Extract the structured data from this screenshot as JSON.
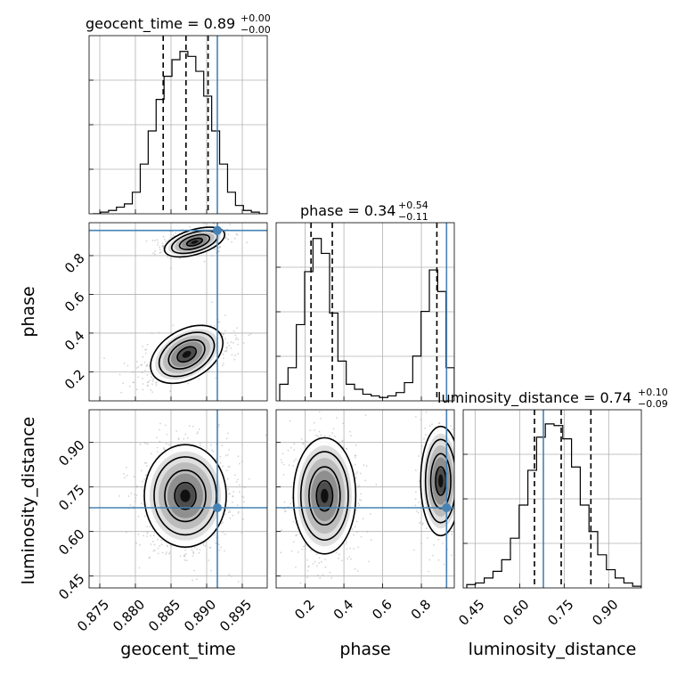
{
  "chart_data": {
    "type": "corner",
    "parameters": [
      "geocent_time",
      "phase",
      "luminosity_distance"
    ],
    "truths": {
      "geocent_time": 0.8915,
      "phase": 0.93,
      "luminosity_distance": 0.68
    },
    "truth_color": "#4682b4",
    "titles": [
      {
        "param": "geocent_time",
        "text": "geocent_time = 0.89",
        "plus": "+0.00",
        "minus": "−0.00"
      },
      {
        "param": "phase",
        "text": "phase = 0.34",
        "plus": "+0.54",
        "minus": "−0.11"
      },
      {
        "param": "luminosity_distance",
        "text": "luminosity_distance = 0.74",
        "plus": "+0.10",
        "minus": "−0.09"
      }
    ],
    "axes": {
      "geocent_time": {
        "range": [
          0.8735,
          0.8985
        ],
        "ticks": [
          0.875,
          0.88,
          0.885,
          0.89,
          0.895
        ],
        "tick_labels": [
          "0.875",
          "0.880",
          "0.885",
          "0.890",
          "0.895"
        ]
      },
      "phase": {
        "range": [
          0.05,
          0.97
        ],
        "ticks": [
          0.2,
          0.4,
          0.6,
          0.8
        ],
        "tick_labels": [
          "0.2",
          "0.4",
          "0.6",
          "0.8"
        ]
      },
      "luminosity_distance": {
        "range": [
          0.41,
          1.01
        ],
        "ticks": [
          0.45,
          0.6,
          0.75,
          0.9
        ],
        "tick_labels": [
          "0.45",
          "0.60",
          "0.75",
          "0.90"
        ]
      }
    },
    "quantiles": {
      "geocent_time": [
        0.8839,
        0.8871,
        0.8902
      ],
      "phase": [
        0.23,
        0.34,
        0.88
      ],
      "luminosity_distance": [
        0.65,
        0.74,
        0.84
      ]
    },
    "histograms": {
      "geocent_time": [
        0.0,
        0.01,
        0.02,
        0.04,
        0.06,
        0.13,
        0.3,
        0.5,
        0.69,
        0.83,
        0.93,
        0.98,
        0.95,
        0.86,
        0.71,
        0.5,
        0.3,
        0.13,
        0.05,
        0.02,
        0.01,
        0.0
      ],
      "phase": [
        0.1,
        0.2,
        0.46,
        0.78,
        0.98,
        0.89,
        0.53,
        0.24,
        0.1,
        0.07,
        0.04,
        0.03,
        0.02,
        0.03,
        0.05,
        0.11,
        0.27,
        0.54,
        0.79,
        0.66,
        0.2
      ],
      "luminosity_distance": [
        0.02,
        0.03,
        0.06,
        0.1,
        0.17,
        0.3,
        0.5,
        0.71,
        0.91,
        0.99,
        0.98,
        0.9,
        0.73,
        0.5,
        0.34,
        0.2,
        0.11,
        0.06,
        0.03,
        0.01
      ]
    },
    "pairs": [
      {
        "x": "geocent_time",
        "y": "phase"
      },
      {
        "x": "geocent_time",
        "y": "luminosity_distance"
      },
      {
        "x": "phase",
        "y": "luminosity_distance"
      }
    ],
    "grid": true
  }
}
